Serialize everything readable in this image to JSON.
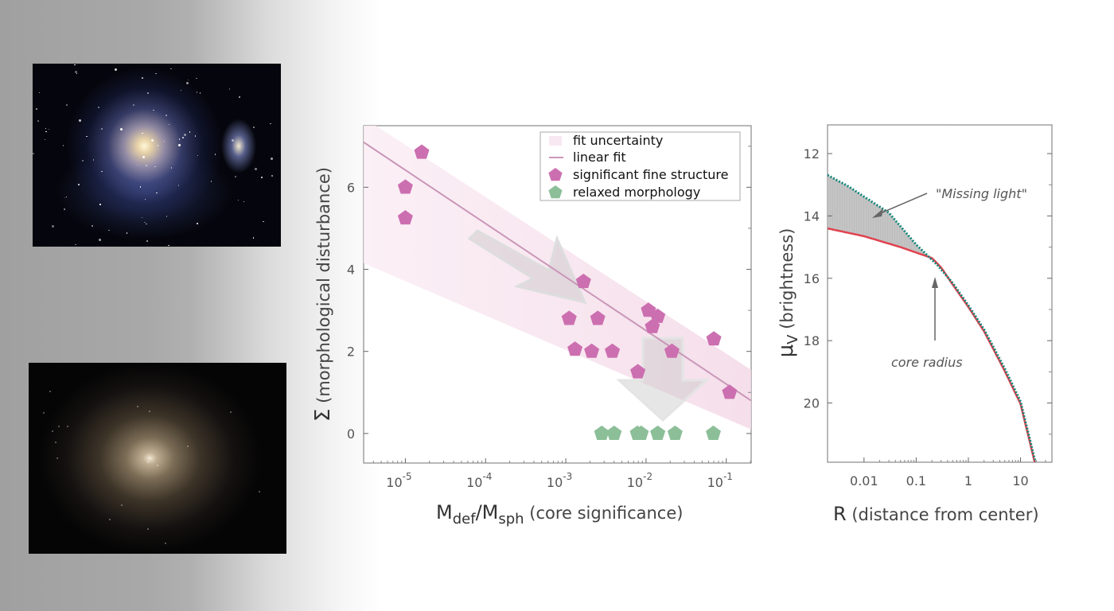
{
  "photos": [
    {
      "label": "interacting-galaxy-photo"
    },
    {
      "label": "elliptical-galaxy-photo"
    }
  ],
  "colors": {
    "significant": "#cc6fb0",
    "relaxed": "#8cbf98",
    "fit": "#c997b8",
    "band": "#f6e4ee",
    "sersic": "#13877a",
    "core_sersic": "#e0424f"
  },
  "chart_data": [
    {
      "type": "scatter",
      "xlabel_main": "M",
      "xlabel_sub1": "def",
      "xlabel_slash": "/M",
      "xlabel_sub2": "sph",
      "xlabel_rest": " (core significance)",
      "ylabel_symbol": "Σ",
      "ylabel_rest": " (morphological disturbance)",
      "xscale": "log",
      "xlim_log10": [
        -5.52,
        -0.69
      ],
      "ylim": [
        -0.72,
        7.5
      ],
      "xticks": [
        {
          "exp": -5,
          "label": "10",
          "sup": "-5"
        },
        {
          "exp": -4,
          "label": "10",
          "sup": "-4"
        },
        {
          "exp": -3,
          "label": "10",
          "sup": "-3"
        },
        {
          "exp": -2,
          "label": "10",
          "sup": "-2"
        },
        {
          "exp": -1,
          "label": "10",
          "sup": "-1"
        }
      ],
      "yticks": [
        0,
        2,
        4,
        6
      ],
      "legend_position": "top-right",
      "legend": [
        "fit uncertainty",
        "linear fit",
        "significant fine structure",
        "relaxed morphology"
      ],
      "linear_fit": {
        "x": [
          3e-06,
          0.204
        ],
        "y": [
          7.1,
          0.8
        ]
      },
      "fit_uncertainty": {
        "x": [
          3e-06,
          0.204
        ],
        "upper": [
          7.7,
          1.55
        ],
        "lower": [
          4.15,
          0.1
        ]
      },
      "series": [
        {
          "name": "significant fine structure",
          "x": [
            1.6e-05,
            1e-05,
            1e-05,
            0.00166,
            0.0011,
            0.0013,
            0.0021,
            0.0025,
            0.0038,
            0.0079,
            0.0107,
            0.014,
            0.012,
            0.021,
            0.07,
            0.11
          ],
          "y": [
            6.85,
            6.0,
            5.25,
            3.7,
            2.8,
            2.05,
            2.0,
            2.8,
            2.0,
            1.5,
            3.0,
            2.85,
            2.6,
            2.0,
            2.3,
            1.0
          ]
        },
        {
          "name": "relaxed morphology",
          "x": [
            0.0028,
            0.004,
            0.0078,
            0.0087,
            0.014,
            0.023,
            0.069
          ],
          "y": [
            0,
            0,
            0,
            0,
            0,
            0,
            0
          ]
        }
      ]
    },
    {
      "type": "line",
      "xlabel_main": "R",
      "xlabel_rest": " (distance from center)",
      "ylabel_main": "μ",
      "ylabel_sub": "V",
      "ylabel_rest": " (brightness)",
      "xscale": "log",
      "xlim": [
        0.002,
        40
      ],
      "ylim": [
        21.9,
        11.08
      ],
      "y_inverted": true,
      "xticks": [
        "0.01",
        "0.1",
        "1",
        "10"
      ],
      "xtick_values": [
        0.01,
        0.1,
        1,
        10
      ],
      "yticks": [
        12,
        14,
        16,
        18,
        20
      ],
      "annotations": [
        "\"Missing light\"",
        "core radius"
      ],
      "series": [
        {
          "name": "Sersic (dotted)",
          "x": [
            0.002,
            0.005,
            0.01,
            0.03,
            0.1,
            0.25,
            0.5,
            1,
            2,
            5,
            10,
            20
          ],
          "y": [
            12.69,
            13.05,
            13.38,
            13.9,
            14.92,
            15.56,
            16.15,
            16.87,
            17.64,
            18.9,
            19.95,
            22.0
          ]
        },
        {
          "name": "core-Sersic (solid)",
          "x": [
            0.002,
            0.01,
            0.05,
            0.2,
            0.3,
            0.5,
            1,
            2,
            5,
            10,
            20
          ],
          "y": [
            14.4,
            14.65,
            15.0,
            15.35,
            15.65,
            16.2,
            16.92,
            17.7,
            18.98,
            20.03,
            22.1
          ]
        }
      ]
    }
  ]
}
